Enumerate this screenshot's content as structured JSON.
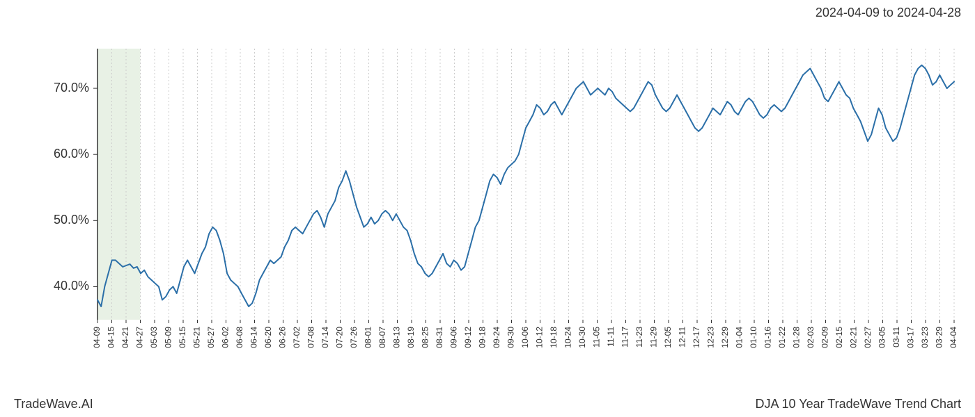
{
  "header": {
    "date_range": "2024-04-09 to 2024-04-28"
  },
  "footer": {
    "brand": "TradeWave.AI",
    "chart_title": "DJA 10 Year TradeWave Trend Chart"
  },
  "chart": {
    "type": "line",
    "background_color": "#ffffff",
    "line_color": "#2b6fa8",
    "line_width": 2,
    "grid_color": "#cccccc",
    "grid_dash": "2,3",
    "highlight_band": {
      "start_index": 0,
      "end_index": 3,
      "fill_color": "#d9e8d4",
      "opacity": 0.6
    },
    "border_left_color": "#333333",
    "y_axis": {
      "min": 35,
      "max": 76,
      "ticks": [
        40,
        50,
        60,
        70
      ],
      "tick_labels": [
        "40.0%",
        "50.0%",
        "60.0%",
        "70.0%"
      ],
      "label_fontsize": 18,
      "label_color": "#333333"
    },
    "x_axis": {
      "labels": [
        "04-09",
        "04-15",
        "04-21",
        "04-27",
        "05-03",
        "05-09",
        "05-15",
        "05-21",
        "05-27",
        "06-02",
        "06-08",
        "06-14",
        "06-20",
        "06-26",
        "07-02",
        "07-08",
        "07-14",
        "07-20",
        "07-26",
        "08-01",
        "08-07",
        "08-13",
        "08-19",
        "08-25",
        "08-31",
        "09-06",
        "09-12",
        "09-18",
        "09-24",
        "09-30",
        "10-06",
        "10-12",
        "10-18",
        "10-24",
        "10-30",
        "11-05",
        "11-11",
        "11-17",
        "11-23",
        "11-29",
        "12-05",
        "12-11",
        "12-17",
        "12-23",
        "12-29",
        "01-04",
        "01-10",
        "01-16",
        "01-22",
        "01-28",
        "02-03",
        "02-09",
        "02-15",
        "02-21",
        "02-27",
        "03-05",
        "03-11",
        "03-17",
        "03-23",
        "03-29",
        "04-04"
      ],
      "label_fontsize": 12,
      "label_color": "#333333",
      "label_rotation": -90
    },
    "series": {
      "values": [
        38,
        37,
        40,
        42,
        44,
        44,
        43.5,
        43,
        43.2,
        43.4,
        42.8,
        43,
        42,
        42.5,
        41.5,
        41,
        40.5,
        40,
        38,
        38.5,
        39.5,
        40,
        39,
        41,
        43,
        44,
        43,
        42,
        43.5,
        45,
        46,
        48,
        49,
        48.5,
        47,
        45,
        42,
        41,
        40.5,
        40,
        39,
        38,
        37,
        37.5,
        39,
        41,
        42,
        43,
        44,
        43.5,
        44,
        44.5,
        46,
        47,
        48.5,
        49,
        48.5,
        48,
        49,
        50,
        51,
        51.5,
        50.5,
        49,
        51,
        52,
        53,
        55,
        56,
        57.5,
        56,
        54,
        52,
        50.5,
        49,
        49.5,
        50.5,
        49.5,
        50,
        51,
        51.5,
        51,
        50,
        51,
        50,
        49,
        48.5,
        47,
        45,
        43.5,
        43,
        42,
        41.5,
        42,
        43,
        44,
        45,
        43.5,
        43,
        44,
        43.5,
        42.5,
        43,
        45,
        47,
        49,
        50,
        52,
        54,
        56,
        57,
        56.5,
        55.5,
        57,
        58,
        58.5,
        59,
        60,
        62,
        64,
        65,
        66,
        67.5,
        67,
        66,
        66.5,
        67.5,
        68,
        67,
        66,
        67,
        68,
        69,
        70,
        70.5,
        71,
        70,
        69,
        69.5,
        70,
        69.5,
        69,
        70,
        69.5,
        68.5,
        68,
        67.5,
        67,
        66.5,
        67,
        68,
        69,
        70,
        71,
        70.5,
        69,
        68,
        67,
        66.5,
        67,
        68,
        69,
        68,
        67,
        66,
        65,
        64,
        63.5,
        64,
        65,
        66,
        67,
        66.5,
        66,
        67,
        68,
        67.5,
        66.5,
        66,
        67,
        68,
        68.5,
        68,
        67,
        66,
        65.5,
        66,
        67,
        67.5,
        67,
        66.5,
        67,
        68,
        69,
        70,
        71,
        72,
        72.5,
        73,
        72,
        71,
        70,
        68.5,
        68,
        69,
        70,
        71,
        70,
        69,
        68.5,
        67,
        66,
        65,
        63.5,
        62,
        63,
        65,
        67,
        66,
        64,
        63,
        62,
        62.5,
        64,
        66,
        68,
        70,
        72,
        73,
        73.5,
        73,
        72,
        70.5,
        71,
        72,
        71,
        70,
        70.5,
        71
      ]
    }
  }
}
